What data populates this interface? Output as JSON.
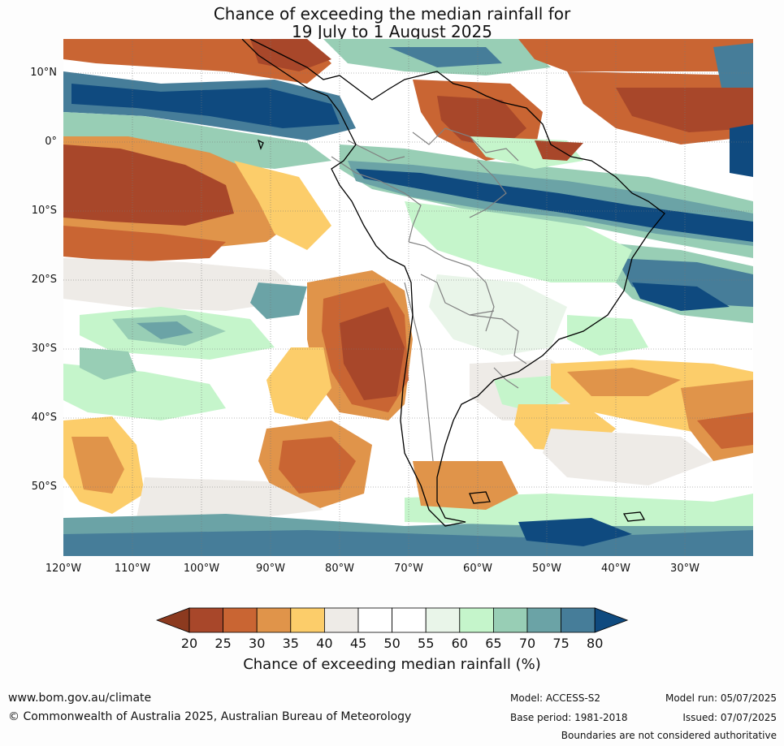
{
  "title": {
    "line1": "Chance of exceeding the median rainfall for",
    "line2": "19 July to 1 August 2025"
  },
  "map": {
    "lat_labels": [
      "10°N",
      "0°",
      "10°S",
      "20°S",
      "30°S",
      "40°S",
      "50°S"
    ],
    "lon_labels": [
      "120°W",
      "110°W",
      "100°W",
      "90°W",
      "80°W",
      "70°W",
      "60°W",
      "50°W",
      "40°W",
      "30°W"
    ],
    "gridlines": true,
    "coastline_color": "#000000",
    "border_color": "#808080"
  },
  "colorbar": {
    "ticks": [
      "20",
      "25",
      "30",
      "35",
      "40",
      "45",
      "50",
      "55",
      "60",
      "65",
      "70",
      "75",
      "80"
    ],
    "colors": [
      "#8c3a1f",
      "#a8472a",
      "#c96533",
      "#e0944a",
      "#fccd6a",
      "#eeebe7",
      "#ffffff",
      "#ffffff",
      "#e9f5e9",
      "#c5f5cb",
      "#98ceb5",
      "#6ba3a6",
      "#467d99",
      "#0f4a7f"
    ],
    "label": "Chance of exceeding median rainfall (%)"
  },
  "footer": {
    "website": "www.bom.gov.au/climate",
    "copyright": "© Commonwealth of Australia 2025, Australian Bureau of Meteorology",
    "model": "Model: ACCESS-S2",
    "base_period": "Base period: 1981-2018",
    "model_run": "Model run: 05/07/2025",
    "issued": "Issued: 07/07/2025",
    "disclaimer": "Boundaries are not considered authoritative"
  }
}
